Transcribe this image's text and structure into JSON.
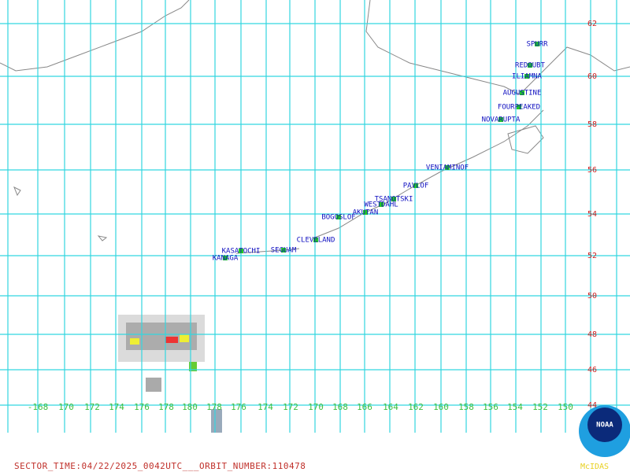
{
  "volcanoes": [
    {
      "name": "SPURR"
    },
    {
      "name": "REDOUBT"
    },
    {
      "name": "ILIAMNA"
    },
    {
      "name": "AUGUSTINE"
    },
    {
      "name": "FOURPEAKED"
    },
    {
      "name": "NOVARUPTA"
    },
    {
      "name": "VENIAMINOF"
    },
    {
      "name": "PAVLOF"
    },
    {
      "name": "TSANOTSKI"
    },
    {
      "name": "WESTDAHL"
    },
    {
      "name": "AKUTAN"
    },
    {
      "name": "BOGOSLOF"
    },
    {
      "name": "CLEVELAND"
    },
    {
      "name": "KASATOCHI"
    },
    {
      "name": "SEGUAM"
    },
    {
      "name": "KANAGA"
    }
  ],
  "lat_labels": [
    "62",
    "60",
    "58",
    "56",
    "54",
    "52",
    "50",
    "48",
    "46",
    "44"
  ],
  "lon_labels": [
    "-168",
    "170",
    "172",
    "174",
    "176",
    "178",
    "180",
    "178",
    "176",
    "174",
    "172",
    "170",
    "168",
    "166",
    "164",
    "162",
    "160",
    "158",
    "156",
    "154",
    "152",
    "150"
  ],
  "footer": "SECTOR_TIME:04/22/2025_0042UTC___ORBIT_NUMBER:110478",
  "logo": "NOAA",
  "credit": "McIDAS"
}
